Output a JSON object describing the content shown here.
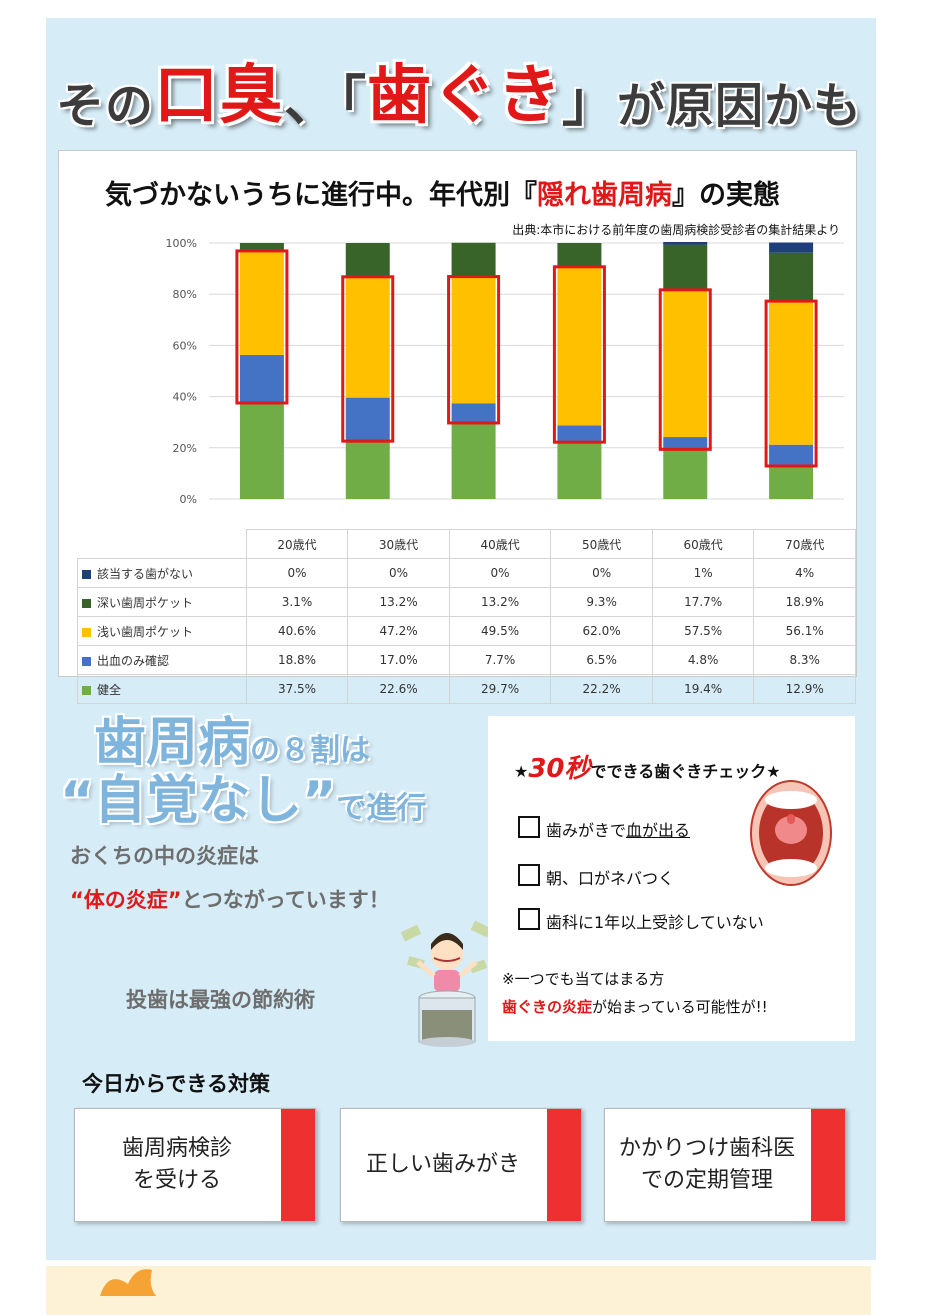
{
  "headline": {
    "part1": "その",
    "part2": "口臭",
    "part3": "、「",
    "part4": "歯ぐき",
    "part5": "」",
    "part6": "が原因かも"
  },
  "chart_section": {
    "title_pre": "気づかないうちに進行中。年代別『",
    "title_red": "隠れ歯周病",
    "title_post": "』の実態",
    "source": "出典:本市における前年度の歯周病検診受診者の集計結果より"
  },
  "chart_data": {
    "type": "bar",
    "stacked": true,
    "categories": [
      "20歳代",
      "30歳代",
      "40歳代",
      "50歳代",
      "60歳代",
      "70歳代"
    ],
    "yticks": [
      "0%",
      "20%",
      "40%",
      "60%",
      "80%",
      "100%"
    ],
    "ylim": [
      0,
      100
    ],
    "series": [
      {
        "name": "健全",
        "color": "#70ad47",
        "values": [
          37.5,
          22.6,
          29.7,
          22.2,
          19.4,
          12.9
        ],
        "labels": [
          "37.5%",
          "22.6%",
          "29.7%",
          "22.2%",
          "19.4%",
          "12.9%"
        ]
      },
      {
        "name": "出血のみ確認",
        "color": "#4472c4",
        "values": [
          18.8,
          17.0,
          7.7,
          6.5,
          4.8,
          8.3
        ],
        "labels": [
          "18.8%",
          "17.0%",
          "7.7%",
          "6.5%",
          "4.8%",
          "8.3%"
        ]
      },
      {
        "name": "浅い歯周ポケット",
        "color": "#ffc000",
        "values": [
          40.6,
          47.2,
          49.5,
          62.0,
          57.5,
          56.1
        ],
        "labels": [
          "40.6%",
          "47.2%",
          "49.5%",
          "62.0%",
          "57.5%",
          "56.1%"
        ]
      },
      {
        "name": "深い歯周ポケット",
        "color": "#38642a",
        "values": [
          3.1,
          13.2,
          13.2,
          9.3,
          17.7,
          18.9
        ],
        "labels": [
          "3.1%",
          "13.2%",
          "13.2%",
          "9.3%",
          "17.7%",
          "18.9%"
        ]
      },
      {
        "name": "該当する歯がない",
        "color": "#1f3f7a",
        "values": [
          0,
          0,
          0,
          0,
          1,
          4
        ],
        "labels": [
          "0%",
          "0%",
          "0%",
          "0%",
          "1%",
          "4%"
        ]
      }
    ],
    "highlight": {
      "color": "#e01818",
      "note": "出血のみ確認 + 浅い歯周ポケット"
    },
    "grid": true
  },
  "left_copy": {
    "big1_a": "歯周病",
    "big1_b": "の８割は",
    "big2_a": "“自覚なし”",
    "big2_b": "で進行",
    "line1": "おくちの中の炎症は",
    "line2_red": "“体の炎症”",
    "line2_post": "とつながっています！",
    "line3": "投歯は最強の節約術"
  },
  "check": {
    "title_pre": "★",
    "title_sec": "30秒",
    "title_post": "でできる歯ぐきチェック★",
    "item1_pre": "歯みがきで",
    "item1_u": "血が出る",
    "item2": "朝、口がネバつく",
    "item3": "歯科に1年以上受診していない",
    "note1": "※一つでも当てはまる方",
    "note2_red": "歯ぐきの炎症",
    "note2_post": "が始まっている可能性が!!"
  },
  "measures": {
    "heading": "今日からできる対策",
    "cards": [
      "歯周病検診\nを受ける",
      "正しい歯みがき",
      "かかりつけ歯科医\nでの定期管理"
    ]
  }
}
